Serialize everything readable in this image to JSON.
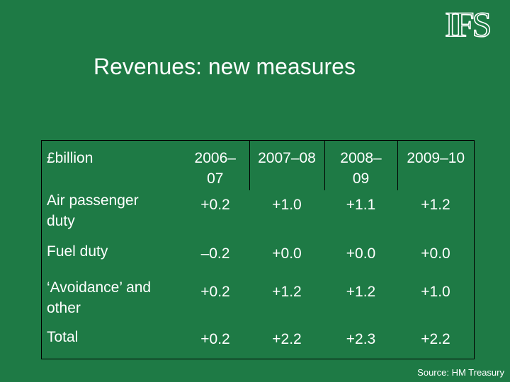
{
  "logo": {
    "text": "IFS"
  },
  "title": "Revenues: new measures",
  "table": {
    "unit_label": "£billion",
    "periods": [
      {
        "line1": "2006–",
        "line2": "07"
      },
      {
        "line1": "2007–08",
        "line2": ""
      },
      {
        "line1": "2008–",
        "line2": "09"
      },
      {
        "line1": "2009–10",
        "line2": ""
      }
    ],
    "rows": [
      {
        "label_line1": "Air passenger",
        "label_line2": "duty",
        "values": [
          "+0.2",
          "+1.0",
          "+1.1",
          "+1.2"
        ]
      },
      {
        "label_line1": "Fuel duty",
        "label_line2": "",
        "values": [
          "–0.2",
          "+0.0",
          "+0.0",
          "+0.0"
        ]
      },
      {
        "label_line1": "‘Avoidance’ and",
        "label_line2": "other",
        "values": [
          "+0.2",
          "+1.2",
          "+1.2",
          "+1.0"
        ]
      },
      {
        "label_line1": "Total",
        "label_line2": "",
        "values": [
          "+0.2",
          "+2.2",
          "+2.3",
          "+2.2"
        ]
      }
    ]
  },
  "source": "Source: HM Treasury"
}
